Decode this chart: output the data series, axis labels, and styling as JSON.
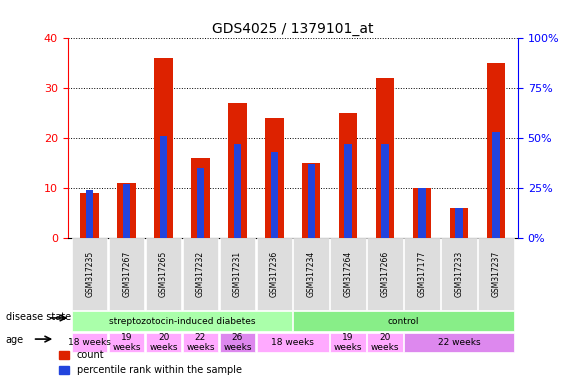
{
  "title": "GDS4025 / 1379101_at",
  "samples": [
    "GSM317235",
    "GSM317267",
    "GSM317265",
    "GSM317232",
    "GSM317231",
    "GSM317236",
    "GSM317234",
    "GSM317264",
    "GSM317266",
    "GSM317177",
    "GSM317233",
    "GSM317237"
  ],
  "counts": [
    9,
    11,
    36,
    16,
    27,
    24,
    15,
    25,
    32,
    10,
    6,
    35
  ],
  "percentiles": [
    24,
    27,
    51,
    35,
    47,
    43,
    37,
    47,
    47,
    25,
    15,
    53
  ],
  "ylim_left": [
    0,
    40
  ],
  "ylim_right": [
    0,
    100
  ],
  "yticks_left": [
    0,
    10,
    20,
    30,
    40
  ],
  "yticks_right": [
    0,
    25,
    50,
    75,
    100
  ],
  "ytick_labels_right": [
    "0%",
    "25%",
    "50%",
    "75%",
    "100%"
  ],
  "bar_color_red": "#dd2200",
  "bar_color_blue": "#2244dd",
  "disease_state_groups": [
    {
      "label": "streptozotocin-induced diabetes",
      "start": 0,
      "end": 6,
      "color": "#aaffaa"
    },
    {
      "label": "control",
      "start": 6,
      "end": 12,
      "color": "#88ee88"
    }
  ],
  "age_groups": [
    {
      "label": "18 weeks",
      "start": 0,
      "end": 1,
      "color": "#ffaaff"
    },
    {
      "label": "19\nweeks",
      "start": 1,
      "end": 2,
      "color": "#ffaaff"
    },
    {
      "label": "20\nweeks",
      "start": 2,
      "end": 3,
      "color": "#ffaaff"
    },
    {
      "label": "22\nweeks",
      "start": 3,
      "end": 4,
      "color": "#ffaaff"
    },
    {
      "label": "26\nweeks",
      "start": 4,
      "end": 5,
      "color": "#dd88ee"
    },
    {
      "label": "18 weeks",
      "start": 5,
      "end": 7,
      "color": "#ffaaff"
    },
    {
      "label": "19\nweeks",
      "start": 7,
      "end": 8,
      "color": "#ffaaff"
    },
    {
      "label": "20\nweeks",
      "start": 8,
      "end": 9,
      "color": "#ffaaff"
    },
    {
      "label": "22 weeks",
      "start": 9,
      "end": 12,
      "color": "#dd88ee"
    }
  ],
  "legend_count_label": "count",
  "legend_pct_label": "percentile rank within the sample",
  "disease_state_label": "disease state",
  "age_label": "age",
  "bg_color": "#ffffff",
  "tick_bg": "#dddddd"
}
